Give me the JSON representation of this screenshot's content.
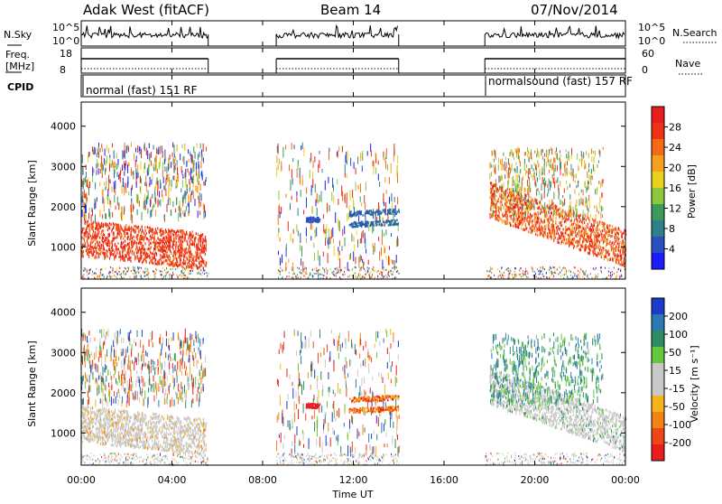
{
  "header": {
    "station": "Adak West (fitACF)",
    "beam": "Beam 14",
    "date": "07/Nov/2014"
  },
  "noise_panel": {
    "left_label": "N.Sky",
    "right_label": "N.Search",
    "left_ticks": [
      "10^5",
      "10^0"
    ],
    "right_ticks": [
      "10^5",
      "10^0"
    ]
  },
  "freq_panel": {
    "left_label_1": "Freq.",
    "left_label_2": "[MHz]",
    "right_label": "Nave",
    "left_ticks": [
      "18",
      "8"
    ],
    "right_ticks": [
      "60",
      "0"
    ]
  },
  "cpid_panel": {
    "label": "CPID",
    "segment_1": "normal (fast) 151 RF",
    "segment_2": "normalsound (fast) 157 RF"
  },
  "chart_data": [
    {
      "type": "heatmap",
      "panel": "power",
      "ylabel": "Slant Range [km]",
      "xlabel": "Time UT",
      "xticks": [
        "00:00",
        "04:00",
        "08:00",
        "12:00",
        "16:00",
        "20:00",
        "00:00"
      ],
      "x_range_hours": [
        0,
        24
      ],
      "yticks": [
        "1000",
        "2000",
        "3000",
        "4000"
      ],
      "y_range_km": [
        200,
        4600
      ],
      "colorbar": {
        "label": "Power [dB]",
        "ticks": [
          "4",
          "8",
          "12",
          "16",
          "20",
          "24",
          "28"
        ],
        "range": [
          0,
          30
        ],
        "colors": [
          "#1c1cff",
          "#2a4fc0",
          "#2e7f8a",
          "#3c9a5a",
          "#8cc83c",
          "#e8d21e",
          "#f5a01e",
          "#f56a14",
          "#ee3214",
          "#e81e1e"
        ]
      },
      "data_windows_hours": [
        [
          0,
          5.6
        ],
        [
          8.6,
          14.0
        ],
        [
          17.8,
          24.0
        ]
      ]
    },
    {
      "type": "heatmap",
      "panel": "velocity",
      "ylabel": "Slant Range [km]",
      "xticks": [
        "00:00",
        "04:00",
        "08:00",
        "12:00",
        "16:00",
        "20:00",
        "00:00"
      ],
      "yticks": [
        "1000",
        "2000",
        "3000",
        "4000"
      ],
      "colorbar": {
        "label": "Velocity [m s⁻¹]",
        "ticks": [
          "200",
          "100",
          "50",
          "15",
          "-15",
          "-50",
          "-100",
          "-200"
        ],
        "colors": [
          "#1c3cc8",
          "#2a78b4",
          "#2e8c64",
          "#64c83c",
          "#c8c8c8",
          "#c8c8c8",
          "#f5b41e",
          "#f58214",
          "#ee4614",
          "#e81e1e"
        ]
      }
    }
  ]
}
